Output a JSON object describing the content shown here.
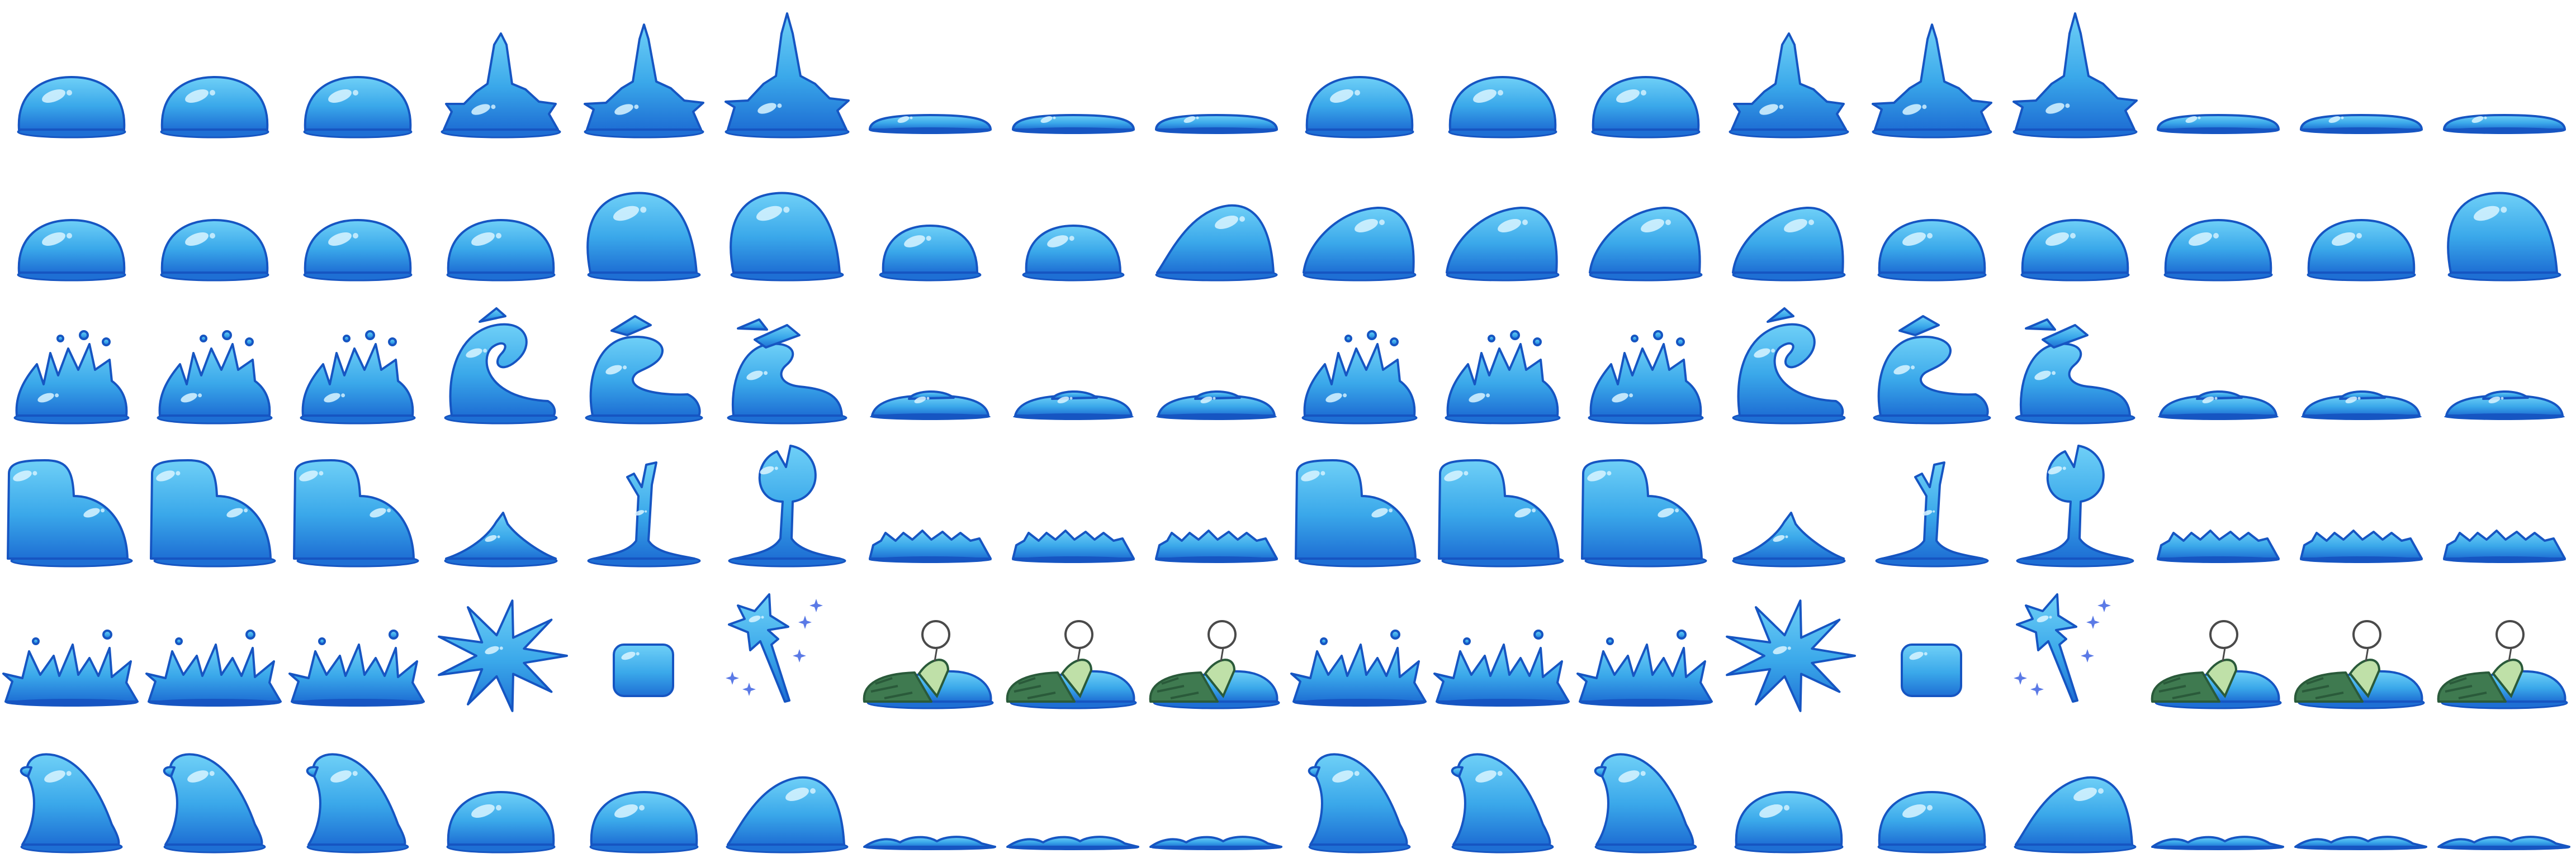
{
  "sheet": {
    "background": "#ffffff",
    "palette": {
      "body": "#3aa8ea",
      "body_light": "#6fd0f7",
      "shade": "#1e6fd4",
      "outline": "#1655c2",
      "highlight": "#d9f4ff",
      "sleeve": "#3f7a50",
      "sleeve_light": "#bfe0a8",
      "sleeve_dark": "#2a5a3a",
      "white": "#ffffff",
      "ring": "#4a4a4a"
    },
    "grid": {
      "columns": 18,
      "rows": 6
    },
    "rows": [
      {
        "name": "row-idle-spike-flat",
        "frames": [
          "dome",
          "dome",
          "dome",
          "spike1",
          "spike2",
          "spike3",
          "flat",
          "flat",
          "flat",
          "dome",
          "dome",
          "dome",
          "spike1",
          "spike2",
          "spike3",
          "flat",
          "flat",
          "flat"
        ]
      },
      {
        "name": "row-squash-stretch",
        "frames": [
          "dome",
          "dome",
          "dome",
          "dome",
          "tall",
          "tall",
          "small",
          "small",
          "mound",
          "lean",
          "lean",
          "lean",
          "lean",
          "dome",
          "dome",
          "dome",
          "dome",
          "tall"
        ]
      },
      {
        "name": "row-splash-hook-puddle",
        "frames": [
          "splash",
          "splash",
          "splash",
          "hook1",
          "hook2",
          "hook3",
          "puddle",
          "puddle",
          "puddle",
          "splash",
          "splash",
          "splash",
          "hook1",
          "hook2",
          "hook3",
          "puddle",
          "puddle",
          "puddle"
        ]
      },
      {
        "name": "row-block-axe-bumps",
        "frames": [
          "block",
          "block",
          "block",
          "peak",
          "stalk",
          "axe",
          "bumps",
          "bumps",
          "bumps",
          "block",
          "block",
          "block",
          "peak",
          "stalk",
          "axe",
          "bumps",
          "bumps",
          "bumps"
        ]
      },
      {
        "name": "row-burst-star-sleep",
        "frames": [
          "spikes",
          "spikes",
          "spikes",
          "burst",
          "cube",
          "star",
          "sleep",
          "sleep",
          "sleep",
          "spikes",
          "spikes",
          "spikes",
          "burst",
          "cube",
          "star",
          "sleep",
          "sleep",
          "sleep"
        ]
      },
      {
        "name": "row-wave-recover",
        "frames": [
          "wave",
          "wave",
          "wave",
          "dome",
          "dome",
          "mound",
          "ripple",
          "ripple",
          "ripple",
          "wave",
          "wave",
          "wave",
          "dome",
          "dome",
          "mound",
          "ripple",
          "ripple",
          "ripple"
        ]
      }
    ]
  }
}
